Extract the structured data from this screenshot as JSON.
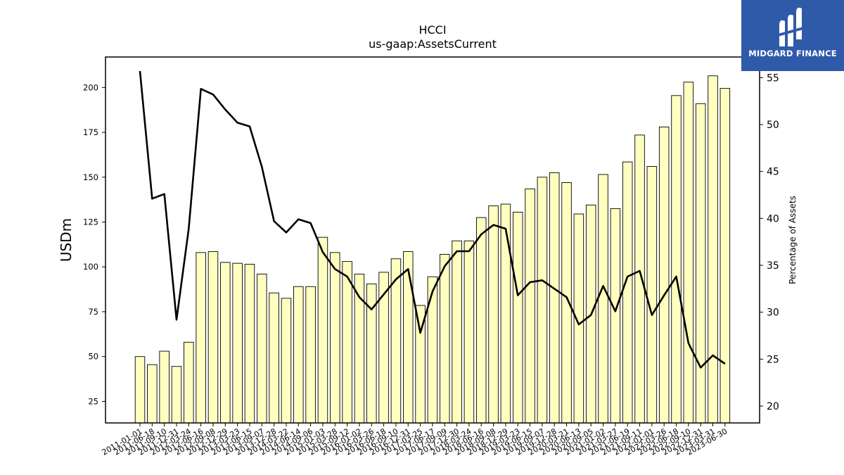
{
  "chart_data": {
    "type": "bar+line",
    "title": "HCCI",
    "subtitle": "us-gaap:AssetsCurrent",
    "ylabel": "USDm",
    "y2label": "Percentage of Assets",
    "ylim": [
      13,
      217
    ],
    "y2lim": [
      18.2,
      57.2
    ],
    "yticks": [
      25,
      50,
      75,
      100,
      125,
      150,
      175,
      200
    ],
    "y2ticks": [
      20,
      25,
      30,
      35,
      40,
      45,
      50,
      55
    ],
    "grid": false,
    "categories": [
      "2011-01-01",
      "2011-06-18",
      "2011-09-10",
      "2011-12-31",
      "2012-03-24",
      "2012-06-16",
      "2012-09-08",
      "2012-12-29",
      "2013-03-23",
      "2013-06-15",
      "2013-09-07",
      "2013-12-28",
      "2014-03-22",
      "2014-06-14",
      "2014-09-06",
      "2015-01-03",
      "2015-03-28",
      "2015-09-12",
      "2016-01-02",
      "2016-03-26",
      "2016-06-18",
      "2016-09-10",
      "2016-12-31",
      "2017-03-25",
      "2017-06-17",
      "2017-09-09",
      "2017-12-30",
      "2018-03-24",
      "2018-06-16",
      "2018-09-08",
      "2018-12-29",
      "2019-03-23",
      "2019-06-15",
      "2019-09-07",
      "2019-12-28",
      "2020-03-21",
      "2020-06-13",
      "2020-09-05",
      "2021-01-02",
      "2021-03-27",
      "2021-06-19",
      "2021-09-11",
      "2022-01-01",
      "2022-03-26",
      "2022-06-18",
      "2022-09-10",
      "2022-12-31",
      "2023-03-31",
      "2023-06-30"
    ],
    "series": [
      {
        "kind": "bar",
        "axis": "left",
        "color": "#ffffbf",
        "values": [
          50,
          45.5,
          53,
          44.5,
          58,
          108,
          108.5,
          102.5,
          102,
          101.5,
          96,
          85.5,
          82.5,
          89,
          89,
          116.5,
          108,
          103,
          96,
          90.5,
          97,
          104.5,
          108.5,
          78.5,
          94.5,
          107,
          114.5,
          114.5,
          127.5,
          134,
          135,
          130.5,
          143.5,
          150,
          152.5,
          147,
          129.5,
          134.5,
          151.5,
          132.5,
          158.5,
          173.5,
          156,
          178,
          195.5,
          203,
          191,
          206.5,
          199.5
        ]
      },
      {
        "kind": "line",
        "axis": "right",
        "color": "#000000",
        "values": [
          55.7,
          42.1,
          42.6,
          29.2,
          38.9,
          53.8,
          53.2,
          51.6,
          50.2,
          49.8,
          45.5,
          39.7,
          38.5,
          39.9,
          39.5,
          36.4,
          34.6,
          33.8,
          31.6,
          30.3,
          31.9,
          33.5,
          34.6,
          27.8,
          32.2,
          34.9,
          36.5,
          36.5,
          38.3,
          39.3,
          38.9,
          31.8,
          33.2,
          33.4,
          32.5,
          31.6,
          28.7,
          29.7,
          32.8,
          30.1,
          33.8,
          34.4,
          29.7,
          31.8,
          33.8,
          26.7,
          24.1,
          25.4,
          24.5
        ]
      }
    ]
  },
  "logo": {
    "text": "MIDGARD FINANCE",
    "icon": "midgard-logo-icon"
  }
}
